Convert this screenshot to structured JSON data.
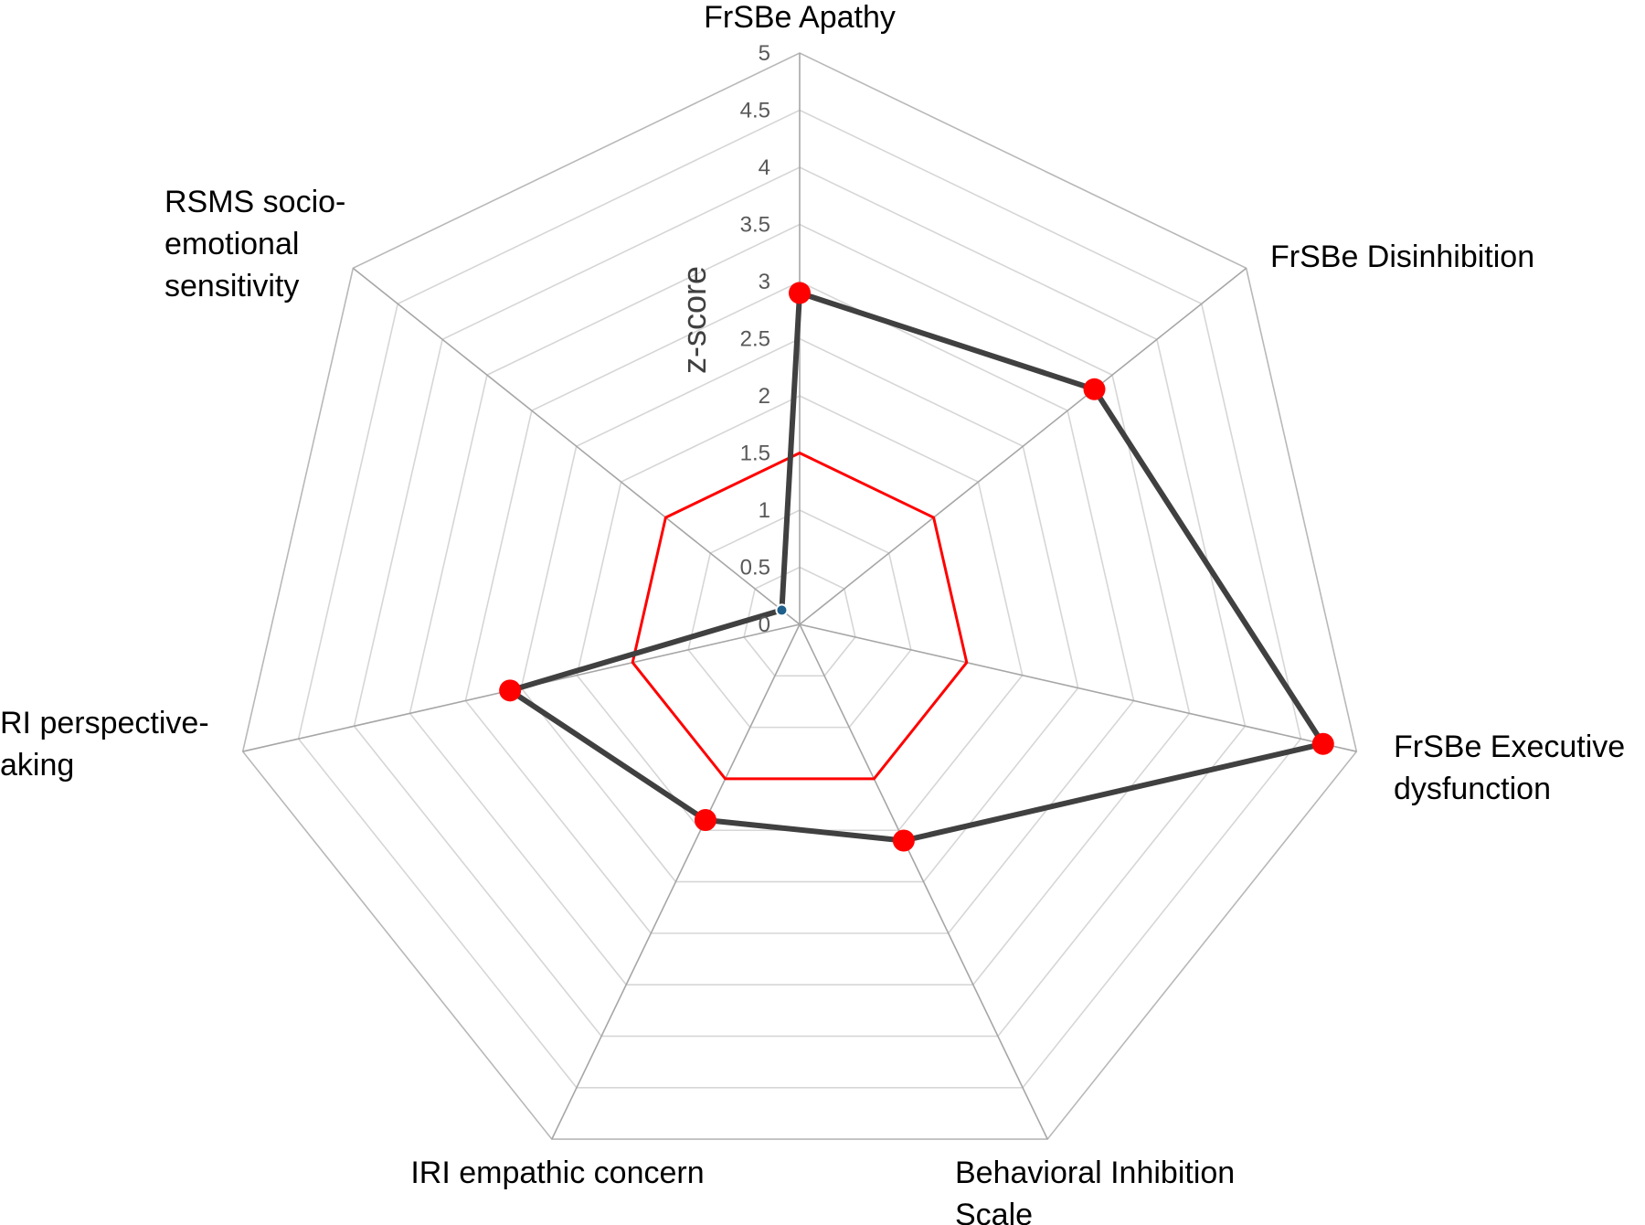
{
  "chart_data": {
    "type": "radar",
    "axes": [
      [
        "FrSBe Apathy"
      ],
      [
        "FrSBe Disinhibition"
      ],
      [
        "FrSBe Executive",
        "dysfunction"
      ],
      [
        "Behavioral Inhibition",
        "Scale"
      ],
      [
        "IRI empathic concern"
      ],
      [
        "RI perspective-",
        "aking"
      ],
      [
        "RSMS socio-",
        "emotional",
        "sensitivity"
      ]
    ],
    "ticks": [
      "0",
      "0.5",
      "1",
      "1.5",
      "2",
      "2.5",
      "3",
      "3.5",
      "4",
      "4.5",
      "5"
    ],
    "rmax": 5,
    "ylabel": "z-score",
    "grid": true,
    "series": [
      {
        "values": [
          2.9,
          3.3,
          4.7,
          2.1,
          1.9,
          2.6,
          0.2
        ],
        "color": "#404040",
        "marker_color": "#ff0000",
        "highlight_marker": {
          "index": 6,
          "color": "#1f5f8b"
        }
      },
      {
        "values": [
          1.5,
          1.5,
          1.5,
          1.5,
          1.5,
          1.5,
          1.5
        ],
        "color": "#ff0000"
      }
    ]
  }
}
